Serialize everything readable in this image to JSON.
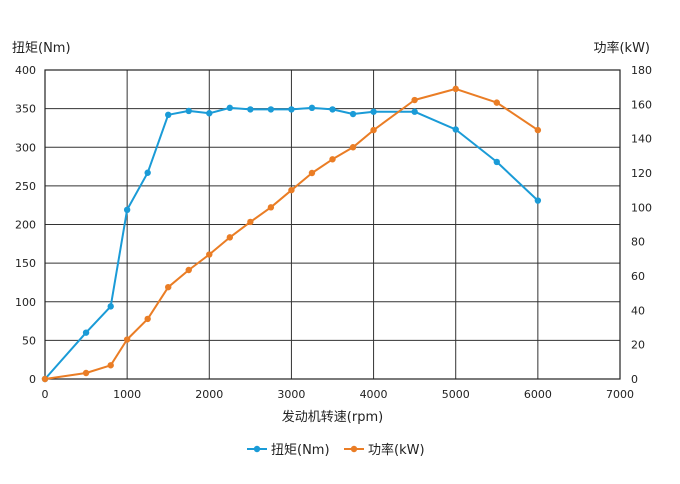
{
  "chart_data": {
    "type": "line",
    "xlabel": "发动机转速(rpm)",
    "ylabel_left": "扭矩(Nm)",
    "ylabel_right": "功率(kW)",
    "xlim": [
      0,
      7000
    ],
    "ylim_left": [
      0,
      400
    ],
    "ylim_right": [
      0,
      180
    ],
    "x_ticks": [
      "0",
      "1000",
      "2000",
      "3000",
      "4000",
      "5000",
      "6000",
      "7000"
    ],
    "y_left_ticks": [
      "0",
      "50",
      "100",
      "150",
      "200",
      "250",
      "300",
      "350",
      "400"
    ],
    "y_right_ticks": [
      "0",
      "20",
      "40",
      "60",
      "80",
      "100",
      "120",
      "140",
      "160",
      "180"
    ],
    "grid": true,
    "legend_position": "bottom-center",
    "series": [
      {
        "name": "扭矩(Nm)",
        "axis": "left",
        "color": "#1a9bd7",
        "x": [
          0,
          500,
          800,
          1000,
          1250,
          1500,
          1750,
          2000,
          2250,
          2500,
          2750,
          3000,
          3250,
          3500,
          3750,
          4000,
          4500,
          5000,
          5500,
          6000
        ],
        "values": [
          0,
          60,
          94,
          219,
          267,
          342,
          347,
          344,
          351,
          349,
          349,
          349,
          351,
          349,
          343,
          346,
          346,
          323,
          281,
          231
        ]
      },
      {
        "name": "功率(kW)",
        "axis": "right",
        "color": "#ea7d25",
        "x": [
          0,
          500,
          800,
          1000,
          1250,
          1500,
          1750,
          2000,
          2250,
          2500,
          2750,
          3000,
          3250,
          3500,
          3750,
          4000,
          4500,
          5000,
          5500,
          6000
        ],
        "values": [
          0,
          3.5,
          8,
          23,
          35,
          53.5,
          63.5,
          72.5,
          82.5,
          91.5,
          100,
          110,
          120,
          128,
          135,
          145,
          162.5,
          169,
          161,
          145
        ]
      }
    ]
  }
}
